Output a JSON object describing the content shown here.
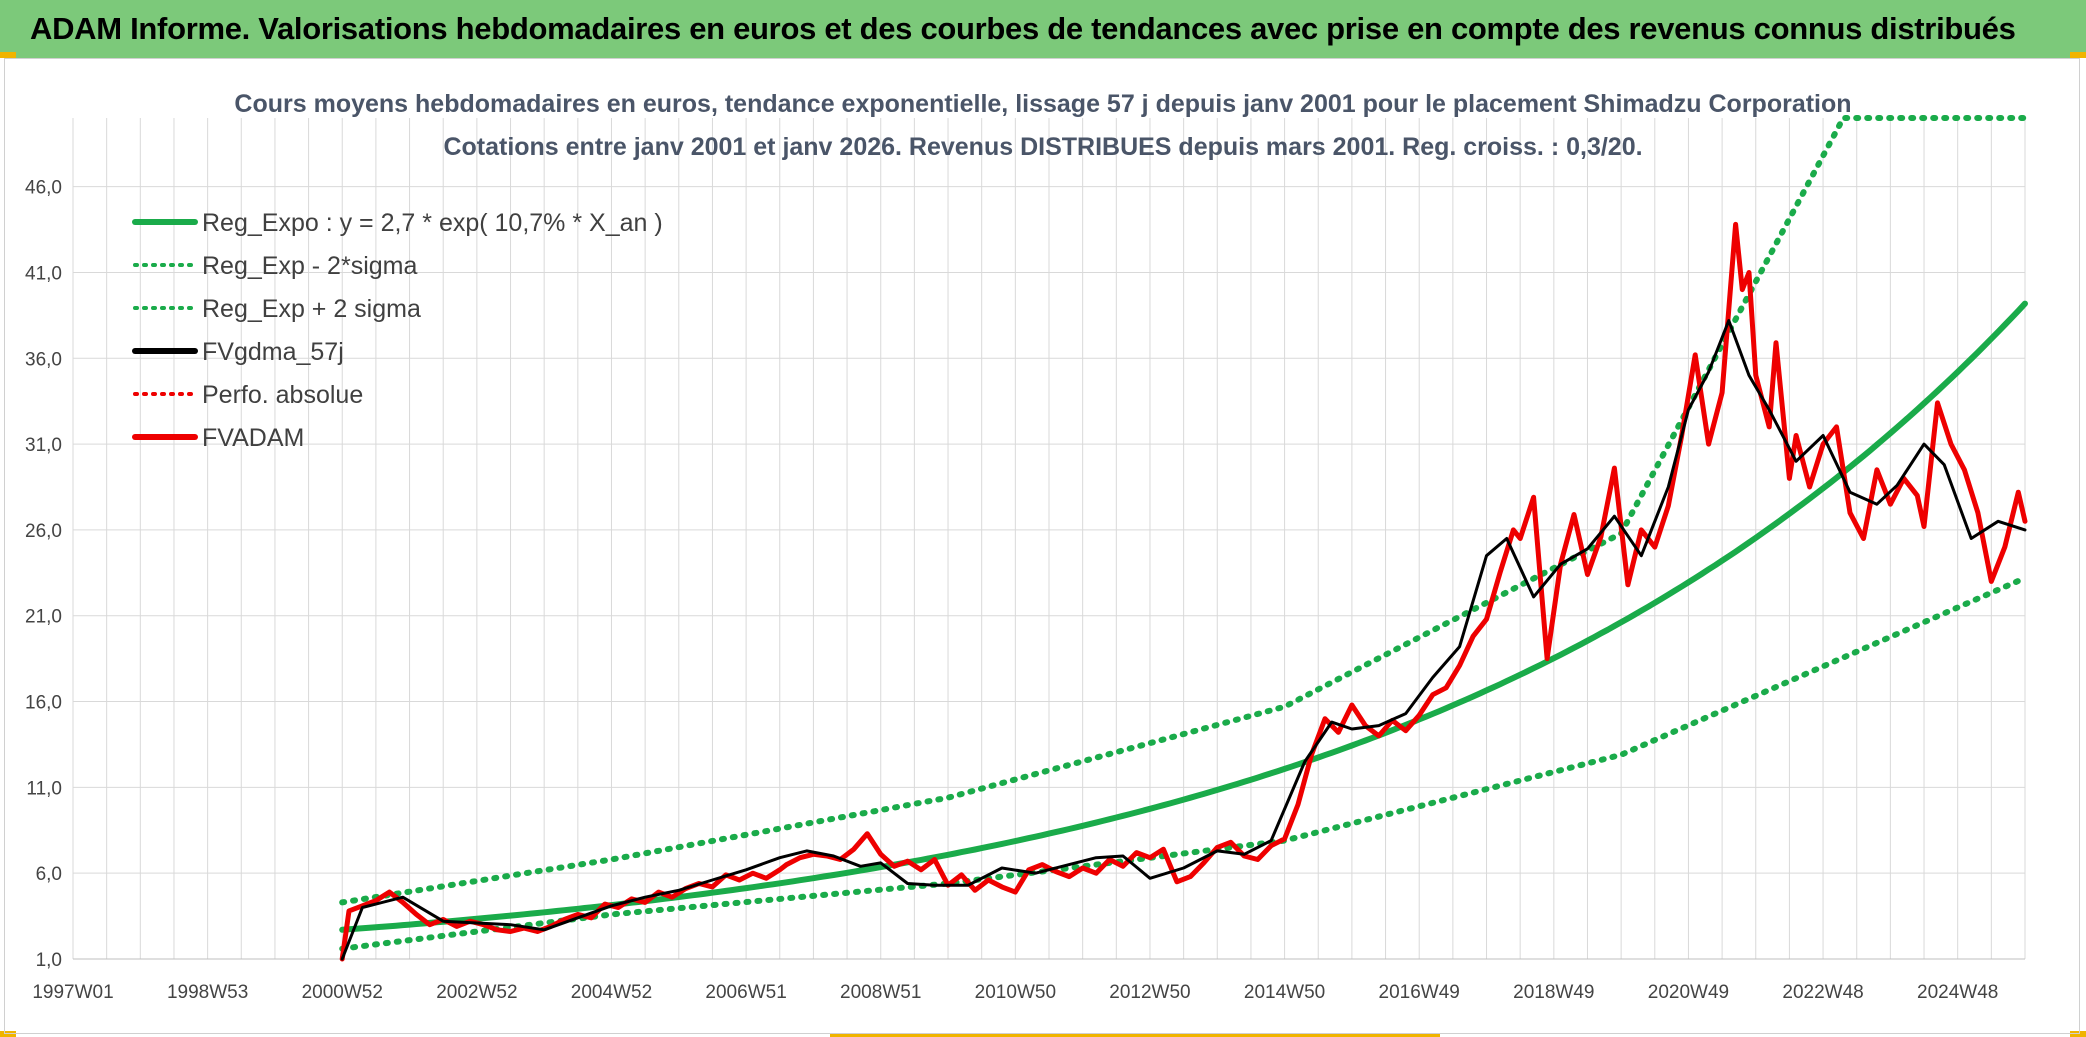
{
  "banner": {
    "title": "ADAM Informe. Valorisations hebdomadaires en euros et des courbes de tendances avec prise en compte des revenus connus distribués"
  },
  "colors": {
    "banner": "#7cc97a",
    "trend": "#1aab4a",
    "price": "#ee0000",
    "smooth": "#000000",
    "grid": "#d9d9d9"
  },
  "chart_data": {
    "type": "line",
    "title": "Cours moyens hebdomadaires en euros, tendance exponentielle, lissage 57 j depuis janv 2001 pour le placement Shimadzu Corporation",
    "subtitle": "Cotations entre janv 2001 et janv 2026. Revenus DISTRIBUES depuis mars 2001. Reg. croiss. : 0,3/20.",
    "xlabel": "",
    "ylabel": "",
    "y_ticks": [
      "1,0",
      "6,0",
      "11,0",
      "16,0",
      "21,0",
      "26,0",
      "31,0",
      "36,0",
      "41,0",
      "46,0"
    ],
    "ylim": [
      1,
      50
    ],
    "x_ticks": [
      "1997W01",
      "1998W53",
      "2000W52",
      "2002W52",
      "2004W52",
      "2006W51",
      "2008W51",
      "2010W50",
      "2012W50",
      "2014W50",
      "2016W49",
      "2018W49",
      "2020W49",
      "2022W48",
      "2024W48"
    ],
    "xlim": [
      1997.0,
      2026.0
    ],
    "grid": true,
    "legend_position": "top-left",
    "series": [
      {
        "name": "Reg_Expo : y = 2,7 * exp( 10,7% *  X_an )",
        "style": "solid",
        "color": "#1aab4a",
        "x": [
          2001.0,
          2026.0
        ],
        "y": [
          2.7,
          39.3
        ],
        "model": {
          "a": 2.7,
          "rate": 0.107,
          "x0": 2001.0
        }
      },
      {
        "name": "Reg_Exp - 2*sigma",
        "style": "dotted",
        "color": "#1aab4a",
        "x": [
          2001.0,
          2005.0,
          2010.0,
          2015.0,
          2020.0,
          2026.0
        ],
        "y": [
          1.6,
          3.6,
          5.4,
          7.9,
          12.9,
          23.2
        ]
      },
      {
        "name": "Reg_Exp + 2 sigma",
        "style": "dotted",
        "color": "#1aab4a",
        "x": [
          2001.0,
          2005.0,
          2010.0,
          2015.0,
          2020.0,
          2023.3,
          2026.0
        ],
        "y": [
          4.3,
          6.8,
          10.4,
          15.7,
          25.8,
          50.0,
          50.0
        ]
      },
      {
        "name": "FVgdma_57j",
        "style": "solid",
        "color": "#000000",
        "x": [
          2001.0,
          2001.3,
          2001.9,
          2002.5,
          2003.0,
          2003.5,
          2004.0,
          2004.5,
          2005.0,
          2005.5,
          2006.0,
          2006.5,
          2007.0,
          2007.5,
          2007.9,
          2008.3,
          2008.7,
          2009.0,
          2009.4,
          2009.8,
          2010.3,
          2010.8,
          2011.3,
          2011.8,
          2012.2,
          2012.6,
          2013.0,
          2013.5,
          2014.0,
          2014.4,
          2014.8,
          2015.3,
          2015.7,
          2016.0,
          2016.4,
          2016.8,
          2017.2,
          2017.6,
          2018.0,
          2018.3,
          2018.7,
          2019.1,
          2019.5,
          2019.9,
          2020.3,
          2020.7,
          2021.0,
          2021.3,
          2021.6,
          2021.9,
          2022.2,
          2022.6,
          2023.0,
          2023.4,
          2023.8,
          2024.1,
          2024.5,
          2024.8,
          2025.2,
          2025.6,
          2026.0
        ],
        "y": [
          1.0,
          4.0,
          4.6,
          3.2,
          3.1,
          3.0,
          2.7,
          3.4,
          4.1,
          4.6,
          5.0,
          5.6,
          6.2,
          6.9,
          7.3,
          7.0,
          6.4,
          6.6,
          5.4,
          5.3,
          5.3,
          6.3,
          6.0,
          6.5,
          6.9,
          7.0,
          5.7,
          6.3,
          7.3,
          7.1,
          7.9,
          12.5,
          14.8,
          14.4,
          14.6,
          15.3,
          17.4,
          19.2,
          24.5,
          25.5,
          22.1,
          24.0,
          24.9,
          26.8,
          24.5,
          28.5,
          33.0,
          35.2,
          38.2,
          35.0,
          33.0,
          30.0,
          31.5,
          28.2,
          27.5,
          28.6,
          31.0,
          29.8,
          25.5,
          26.5,
          26.0
        ]
      },
      {
        "name": "Perfo. absolue",
        "style": "dotted",
        "color": "#ee0000",
        "x": [],
        "y": []
      },
      {
        "name": "FVADAM",
        "style": "solid",
        "color": "#ee0000",
        "x": [
          2001.0,
          2001.1,
          2001.3,
          2001.5,
          2001.7,
          2001.9,
          2002.1,
          2002.3,
          2002.5,
          2002.7,
          2002.9,
          2003.1,
          2003.3,
          2003.5,
          2003.7,
          2003.9,
          2004.1,
          2004.3,
          2004.5,
          2004.7,
          2004.9,
          2005.1,
          2005.3,
          2005.5,
          2005.7,
          2005.9,
          2006.1,
          2006.3,
          2006.5,
          2006.7,
          2006.9,
          2007.1,
          2007.3,
          2007.5,
          2007.6,
          2007.8,
          2008.0,
          2008.2,
          2008.4,
          2008.6,
          2008.8,
          2009.0,
          2009.2,
          2009.4,
          2009.6,
          2009.8,
          2010.0,
          2010.2,
          2010.4,
          2010.6,
          2010.8,
          2011.0,
          2011.2,
          2011.4,
          2011.6,
          2011.8,
          2012.0,
          2012.2,
          2012.4,
          2012.6,
          2012.8,
          2013.0,
          2013.2,
          2013.4,
          2013.6,
          2013.8,
          2014.0,
          2014.2,
          2014.4,
          2014.6,
          2014.8,
          2015.0,
          2015.2,
          2015.4,
          2015.6,
          2015.8,
          2016.0,
          2016.2,
          2016.4,
          2016.6,
          2016.8,
          2017.0,
          2017.2,
          2017.4,
          2017.6,
          2017.8,
          2018.0,
          2018.2,
          2018.4,
          2018.5,
          2018.7,
          2018.9,
          2019.1,
          2019.3,
          2019.5,
          2019.7,
          2019.9,
          2020.1,
          2020.3,
          2020.5,
          2020.7,
          2020.9,
          2021.1,
          2021.3,
          2021.5,
          2021.7,
          2021.8,
          2021.9,
          2022.0,
          2022.2,
          2022.3,
          2022.5,
          2022.6,
          2022.8,
          2023.0,
          2023.2,
          2023.4,
          2023.6,
          2023.8,
          2024.0,
          2024.2,
          2024.4,
          2024.5,
          2024.7,
          2024.9,
          2025.1,
          2025.3,
          2025.5,
          2025.7,
          2025.9,
          2026.0
        ],
        "y": [
          1.0,
          3.8,
          4.1,
          4.4,
          4.9,
          4.3,
          3.6,
          3.0,
          3.3,
          2.9,
          3.2,
          3.0,
          2.7,
          2.6,
          2.8,
          2.6,
          2.9,
          3.3,
          3.6,
          3.4,
          4.2,
          4.0,
          4.5,
          4.3,
          4.9,
          4.6,
          5.1,
          5.4,
          5.2,
          5.9,
          5.6,
          6.0,
          5.7,
          6.2,
          6.5,
          6.9,
          7.1,
          7.0,
          6.8,
          7.4,
          8.3,
          7.1,
          6.4,
          6.7,
          6.2,
          6.8,
          5.3,
          5.9,
          5.0,
          5.6,
          5.2,
          4.9,
          6.2,
          6.5,
          6.1,
          5.8,
          6.3,
          6.0,
          6.8,
          6.4,
          7.2,
          6.9,
          7.4,
          5.5,
          5.8,
          6.6,
          7.5,
          7.8,
          7.0,
          6.8,
          7.6,
          8.0,
          10.0,
          12.9,
          15.0,
          14.2,
          15.8,
          14.6,
          14.0,
          14.9,
          14.3,
          15.2,
          16.4,
          16.8,
          18.1,
          19.8,
          20.8,
          23.5,
          26.0,
          25.5,
          27.9,
          18.5,
          24.0,
          26.9,
          23.4,
          25.6,
          29.6,
          22.8,
          26.0,
          25.0,
          27.4,
          31.5,
          36.2,
          31.0,
          34.0,
          43.8,
          40.0,
          41.0,
          35.0,
          32.0,
          36.9,
          29.0,
          31.5,
          28.5,
          31.0,
          32.0,
          27.0,
          25.5,
          29.5,
          27.5,
          29.0,
          28.0,
          26.2,
          33.4,
          31.0,
          29.5,
          27.0,
          23.0,
          25.0,
          28.2,
          26.5
        ]
      }
    ]
  }
}
